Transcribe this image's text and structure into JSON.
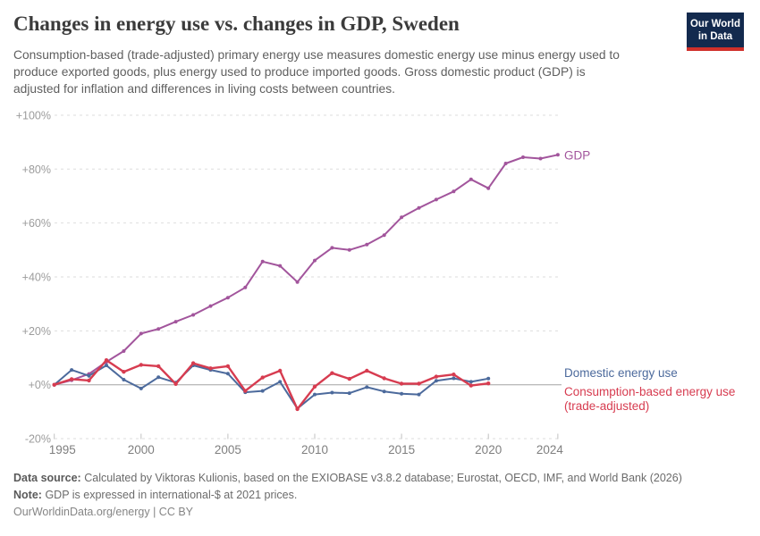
{
  "header": {
    "title": "Changes in energy use vs. changes in GDP, Sweden",
    "subtitle_line1": "Consumption-based (trade-adjusted) primary energy use measures domestic energy use minus energy used to",
    "subtitle_line2": "produce exported goods, plus energy used to produce imported goods. Gross domestic product (GDP) is",
    "subtitle_line3": "adjusted for inflation and differences in living costs between countries.",
    "logo": {
      "line1": "Our World",
      "line2": "in Data",
      "bg_color": "#132a4e",
      "stripe_color": "#d0302a"
    }
  },
  "chart_data": {
    "type": "line",
    "title": "Changes in energy use vs. changes in GDP, Sweden",
    "xlabel": "",
    "ylabel": "",
    "unit": "%",
    "grid": "dashed-horizontal",
    "x_range": [
      1995,
      2024
    ],
    "ylim": [
      -20,
      100
    ],
    "x_ticks": [
      1995,
      2000,
      2005,
      2010,
      2015,
      2020,
      2024
    ],
    "y_ticks": [
      {
        "value": 100,
        "label": "+100%"
      },
      {
        "value": 80,
        "label": "+80%"
      },
      {
        "value": 60,
        "label": "+60%"
      },
      {
        "value": 40,
        "label": "+40%"
      },
      {
        "value": 20,
        "label": "+20%"
      },
      {
        "value": 0,
        "label": "+0%"
      },
      {
        "value": -20,
        "label": "-20%"
      }
    ],
    "series": [
      {
        "name": "GDP",
        "end_label": "GDP",
        "color": "#a2559c",
        "start_year": 1995,
        "values": [
          0,
          1.7,
          4.0,
          8.5,
          12.5,
          19.0,
          20.7,
          23.4,
          25.9,
          29.2,
          32.3,
          36.1,
          45.7,
          44.1,
          38.1,
          46.1,
          50.8,
          50.0,
          52.0,
          55.5,
          62.1,
          65.6,
          68.7,
          71.7,
          76.2,
          72.9,
          82.1,
          84.4,
          83.9,
          85.3
        ]
      },
      {
        "name": "Domestic energy use",
        "end_label": "Domestic energy use",
        "color": "#4c6a9c",
        "start_year": 1995,
        "values": [
          0,
          5.5,
          3.3,
          7.2,
          1.9,
          -1.4,
          2.8,
          0.8,
          7.2,
          5.5,
          4.1,
          -2.8,
          -2.3,
          1.1,
          -8.8,
          -3.6,
          -2.9,
          -3.1,
          -0.9,
          -2.5,
          -3.3,
          -3.6,
          1.5,
          2.4,
          1.1,
          2.3
        ]
      },
      {
        "name": "Consumption-based energy use (trade-adjusted)",
        "end_label": "Consumption-based energy use\n(trade-adjusted)",
        "color": "#d73c50",
        "start_year": 1995,
        "values": [
          0,
          2.1,
          1.6,
          9.1,
          4.8,
          7.4,
          6.9,
          0.3,
          8.0,
          6.1,
          6.9,
          -2.3,
          2.7,
          5.2,
          -9.0,
          -0.7,
          4.3,
          2.2,
          5.2,
          2.4,
          0.4,
          0.4,
          3.0,
          3.8,
          -0.3,
          0.5
        ]
      }
    ],
    "legend_position": "right-end-labels"
  },
  "footer": {
    "source_label": "Data source:",
    "source_text": "Calculated by Viktoras Kulionis, based on the EXIOBASE v3.8.2 database; Eurostat, OECD, IMF, and World Bank (2026)",
    "note_label": "Note:",
    "note_text": "GDP is expressed in international-$ at 2021 prices.",
    "link_text": "OurWorldinData.org/energy | CC BY"
  }
}
